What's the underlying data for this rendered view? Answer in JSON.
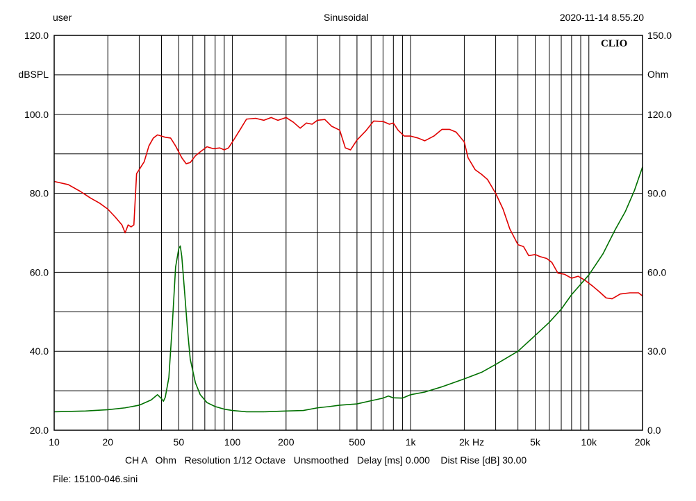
{
  "header": {
    "left": "user",
    "center": "Sinusoidal",
    "right": "2020-11-14 8.55.20"
  },
  "logo": "CLIO",
  "footer": {
    "settings": "CH A   Ohm   Resolution 1/12 Octave   Unsmoothed   Delay [ms] 0.000    Dist Rise [dB] 30.00",
    "file": "File: 15100-046.sini"
  },
  "chart_data": {
    "type": "line",
    "x_scale": "log",
    "xlim": [
      10,
      20000
    ],
    "grid": true,
    "x_ticks": [
      10,
      20,
      50,
      100,
      200,
      500,
      1000,
      2000,
      5000,
      10000,
      20000
    ],
    "x_tick_labels": [
      "10",
      "20",
      "50",
      "100",
      "200",
      "500",
      "1k",
      "2k",
      "5k",
      "10k",
      "20k"
    ],
    "x_unit": "Hz",
    "y_left": {
      "unit": "dBSPL",
      "lim": [
        20,
        120
      ],
      "ticks": [
        20,
        40,
        60,
        80,
        100,
        120
      ],
      "tick_labels": [
        "20.0",
        "40.0",
        "60.0",
        "80.0",
        "100.0",
        "120.0"
      ]
    },
    "y_right": {
      "unit": "Ohm",
      "lim": [
        0,
        150
      ],
      "ticks": [
        0,
        30,
        60,
        90,
        120,
        150
      ],
      "tick_labels": [
        "0.0",
        "30.0",
        "60.0",
        "90.0",
        "120.0",
        "150.0"
      ]
    },
    "series": [
      {
        "axis": "left",
        "color": "#e00000",
        "points": [
          [
            10,
            83
          ],
          [
            12,
            82.2
          ],
          [
            14,
            80.5
          ],
          [
            16,
            78.8
          ],
          [
            18,
            77.5
          ],
          [
            20,
            76
          ],
          [
            22,
            74
          ],
          [
            24,
            72
          ],
          [
            25,
            70
          ],
          [
            26,
            72
          ],
          [
            27,
            71.5
          ],
          [
            28,
            72
          ],
          [
            29,
            85
          ],
          [
            30,
            86
          ],
          [
            32,
            88
          ],
          [
            34,
            92
          ],
          [
            36,
            94
          ],
          [
            38,
            94.8
          ],
          [
            40,
            94.5
          ],
          [
            42,
            94.2
          ],
          [
            45,
            94
          ],
          [
            48,
            92
          ],
          [
            52,
            89
          ],
          [
            55,
            87.5
          ],
          [
            58,
            87.8
          ],
          [
            62,
            89.5
          ],
          [
            66,
            90.5
          ],
          [
            72,
            91.8
          ],
          [
            78,
            91.3
          ],
          [
            85,
            91.5
          ],
          [
            90,
            91
          ],
          [
            95,
            91.5
          ],
          [
            100,
            93
          ],
          [
            110,
            96
          ],
          [
            120,
            98.8
          ],
          [
            135,
            99
          ],
          [
            150,
            98.5
          ],
          [
            165,
            99.2
          ],
          [
            180,
            98.5
          ],
          [
            200,
            99.2
          ],
          [
            220,
            98
          ],
          [
            240,
            96.5
          ],
          [
            260,
            97.8
          ],
          [
            280,
            97.5
          ],
          [
            300,
            98.5
          ],
          [
            330,
            98.7
          ],
          [
            360,
            97
          ],
          [
            400,
            96
          ],
          [
            430,
            91.5
          ],
          [
            460,
            91
          ],
          [
            500,
            93.5
          ],
          [
            560,
            95.8
          ],
          [
            620,
            98.3
          ],
          [
            700,
            98.2
          ],
          [
            760,
            97.5
          ],
          [
            800,
            97.8
          ],
          [
            850,
            96
          ],
          [
            920,
            94.5
          ],
          [
            1000,
            94.5
          ],
          [
            1100,
            94
          ],
          [
            1200,
            93.3
          ],
          [
            1350,
            94.5
          ],
          [
            1500,
            96.2
          ],
          [
            1650,
            96.2
          ],
          [
            1800,
            95.5
          ],
          [
            2000,
            93
          ],
          [
            2100,
            89
          ],
          [
            2300,
            86
          ],
          [
            2500,
            84.8
          ],
          [
            2700,
            83.5
          ],
          [
            3000,
            80
          ],
          [
            3300,
            76
          ],
          [
            3600,
            71
          ],
          [
            4000,
            67
          ],
          [
            4300,
            66.5
          ],
          [
            4600,
            64.2
          ],
          [
            5000,
            64.5
          ],
          [
            5300,
            64
          ],
          [
            5800,
            63.5
          ],
          [
            6200,
            62.5
          ],
          [
            6700,
            59.8
          ],
          [
            7300,
            59.5
          ],
          [
            8000,
            58.5
          ],
          [
            8700,
            59
          ],
          [
            9500,
            58
          ],
          [
            10500,
            56.5
          ],
          [
            11500,
            55
          ],
          [
            12500,
            53.5
          ],
          [
            13500,
            53.3
          ],
          [
            15000,
            54.5
          ],
          [
            17000,
            54.8
          ],
          [
            19000,
            54.8
          ],
          [
            20000,
            54
          ]
        ]
      },
      {
        "axis": "right",
        "color": "#007000",
        "points": [
          [
            10,
            7
          ],
          [
            15,
            7.3
          ],
          [
            20,
            7.8
          ],
          [
            25,
            8.5
          ],
          [
            30,
            9.5
          ],
          [
            35,
            11.5
          ],
          [
            38,
            13.5
          ],
          [
            40,
            12
          ],
          [
            41,
            11
          ],
          [
            42,
            12.5
          ],
          [
            44,
            20
          ],
          [
            46,
            40
          ],
          [
            48,
            62
          ],
          [
            50,
            69
          ],
          [
            51,
            70
          ],
          [
            52,
            66
          ],
          [
            54,
            52
          ],
          [
            56,
            38
          ],
          [
            58,
            27
          ],
          [
            62,
            18
          ],
          [
            66,
            13.5
          ],
          [
            72,
            10.5
          ],
          [
            80,
            9
          ],
          [
            90,
            8
          ],
          [
            100,
            7.5
          ],
          [
            120,
            7
          ],
          [
            150,
            7
          ],
          [
            200,
            7.3
          ],
          [
            250,
            7.5
          ],
          [
            300,
            8.5
          ],
          [
            350,
            9
          ],
          [
            400,
            9.5
          ],
          [
            500,
            10
          ],
          [
            600,
            11.2
          ],
          [
            700,
            12.2
          ],
          [
            750,
            13
          ],
          [
            800,
            12.3
          ],
          [
            900,
            12.2
          ],
          [
            1000,
            13.5
          ],
          [
            1200,
            14.5
          ],
          [
            1500,
            16.5
          ],
          [
            2000,
            19.5
          ],
          [
            2500,
            22
          ],
          [
            3000,
            25
          ],
          [
            4000,
            30
          ],
          [
            5000,
            36
          ],
          [
            6000,
            41
          ],
          [
            7000,
            46
          ],
          [
            8000,
            51.5
          ],
          [
            10000,
            59
          ],
          [
            12000,
            67
          ],
          [
            14000,
            76
          ],
          [
            16000,
            83
          ],
          [
            18000,
            91
          ],
          [
            20000,
            100
          ]
        ]
      }
    ]
  }
}
